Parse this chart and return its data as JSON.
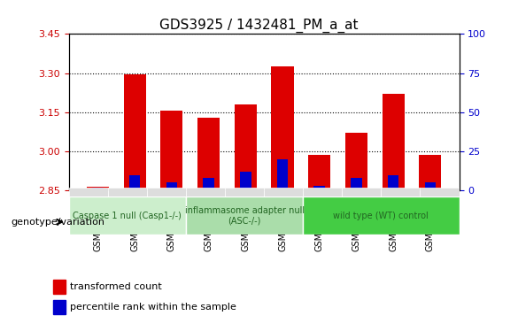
{
  "title": "GDS3925 / 1432481_PM_a_at",
  "samples": [
    "GSM619226",
    "GSM619227",
    "GSM619228",
    "GSM619233",
    "GSM619234",
    "GSM619235",
    "GSM619229",
    "GSM619230",
    "GSM619231",
    "GSM619232"
  ],
  "transformed_count": [
    2.865,
    3.295,
    3.155,
    3.13,
    3.18,
    3.325,
    2.985,
    3.07,
    3.22,
    2.985
  ],
  "percentile_rank": [
    2,
    10,
    5,
    8,
    12,
    20,
    3,
    8,
    10,
    5
  ],
  "baseline": 2.85,
  "ylim_left": [
    2.85,
    3.45
  ],
  "ylim_right": [
    0,
    100
  ],
  "yticks_left": [
    2.85,
    3.0,
    3.15,
    3.3,
    3.45
  ],
  "yticks_right": [
    0,
    25,
    50,
    75,
    100
  ],
  "bar_color_red": "#dd0000",
  "bar_color_blue": "#0000cc",
  "groups": [
    {
      "label": "Caspase 1 null (Casp1-/-)",
      "indices": [
        0,
        1,
        2
      ],
      "color": "#cceecc"
    },
    {
      "label": "inflammasome adapter null\n(ASC-/-)",
      "indices": [
        3,
        4,
        5
      ],
      "color": "#aaddaa"
    },
    {
      "label": "wild type (WT) control",
      "indices": [
        6,
        7,
        8,
        9
      ],
      "color": "#44cc44"
    }
  ],
  "legend_red": "transformed count",
  "legend_blue": "percentile rank within the sample",
  "xlabel_left": "",
  "genotype_label": "genotype/variation",
  "background_color": "#ffffff",
  "bar_width": 0.6,
  "tick_label_color_left": "#cc0000",
  "tick_label_color_right": "#0000cc"
}
